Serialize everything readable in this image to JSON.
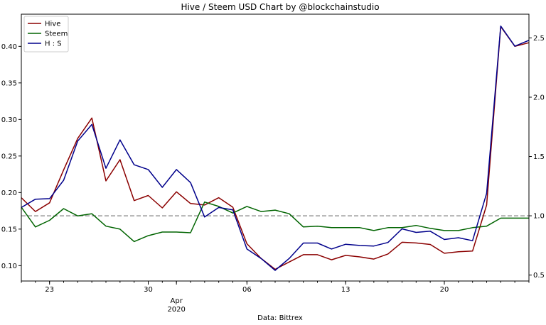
{
  "chart_data": {
    "type": "line",
    "title": "Hive / Steem USD Chart by @blockchainstudio",
    "xlabel": "Data: Bittrex",
    "x": [
      "Mar 21",
      "Mar 22",
      "Mar 23",
      "Mar 24",
      "Mar 25",
      "Mar 26",
      "Mar 27",
      "Mar 28",
      "Mar 29",
      "Mar 30",
      "Mar 31",
      "Apr 01",
      "Apr 02",
      "Apr 03",
      "Apr 04",
      "Apr 05",
      "Apr 06",
      "Apr 07",
      "Apr 08",
      "Apr 09",
      "Apr 10",
      "Apr 11",
      "Apr 12",
      "Apr 13",
      "Apr 14",
      "Apr 15",
      "Apr 16",
      "Apr 17",
      "Apr 18",
      "Apr 19",
      "Apr 20",
      "Apr 21",
      "Apr 22",
      "Apr 23",
      "Apr 24",
      "Apr 25",
      "Apr 26"
    ],
    "x_ticks": [
      {
        "label": "23",
        "date": "Mar 23"
      },
      {
        "label": "30",
        "date": "Mar 30"
      },
      {
        "label": "Apr",
        "date": "Apr 01"
      },
      {
        "label": "2020",
        "date": "Apr 01"
      },
      {
        "label": "06",
        "date": "Apr 06"
      },
      {
        "label": "13",
        "date": "Apr 13"
      },
      {
        "label": "20",
        "date": "Apr 20"
      }
    ],
    "y_left": {
      "ticks": [
        "0.10",
        "0.15",
        "0.20",
        "0.25",
        "0.30",
        "0.35",
        "0.40"
      ],
      "ylim": [
        0.079,
        0.444
      ]
    },
    "y_right": {
      "ticks": [
        "0.5",
        "1.0",
        "1.5",
        "2.0",
        "2.5"
      ],
      "ylim": [
        0.45,
        2.7
      ]
    },
    "reference_line": {
      "axis": "right",
      "value": 1.0,
      "style": "dashed",
      "color": "#808080"
    },
    "legend": {
      "placement": "upper-left"
    },
    "series": [
      {
        "name": "Hive",
        "axis": "left",
        "color": "#8b0000",
        "values": [
          0.193,
          0.174,
          0.186,
          0.231,
          0.274,
          0.302,
          0.216,
          0.245,
          0.189,
          0.196,
          0.179,
          0.201,
          0.185,
          0.183,
          0.193,
          0.18,
          0.13,
          0.11,
          0.095,
          0.105,
          0.115,
          0.115,
          0.108,
          0.114,
          0.112,
          0.109,
          0.116,
          0.132,
          0.131,
          0.129,
          0.117,
          0.119,
          0.12,
          0.183,
          0.427,
          0.4,
          0.405
        ]
      },
      {
        "name": "Steem",
        "axis": "left",
        "color": "#006400",
        "values": [
          0.18,
          0.153,
          0.162,
          0.178,
          0.168,
          0.171,
          0.154,
          0.15,
          0.133,
          0.141,
          0.146,
          0.146,
          0.145,
          0.187,
          0.181,
          0.172,
          0.181,
          0.174,
          0.176,
          0.171,
          0.153,
          0.154,
          0.152,
          0.152,
          0.152,
          0.148,
          0.152,
          0.152,
          0.155,
          0.151,
          0.148,
          0.148,
          0.152,
          0.154,
          0.165,
          0.165,
          0.165
        ]
      },
      {
        "name": "H : S",
        "axis": "right",
        "color": "#00008b",
        "values": [
          1.07,
          1.14,
          1.145,
          1.3,
          1.63,
          1.77,
          1.4,
          1.64,
          1.43,
          1.39,
          1.24,
          1.39,
          1.28,
          0.99,
          1.07,
          1.05,
          0.72,
          0.64,
          0.54,
          0.64,
          0.77,
          0.77,
          0.72,
          0.76,
          0.75,
          0.745,
          0.775,
          0.89,
          0.86,
          0.87,
          0.8,
          0.815,
          0.79,
          1.19,
          2.6,
          2.43,
          2.48
        ]
      }
    ]
  }
}
